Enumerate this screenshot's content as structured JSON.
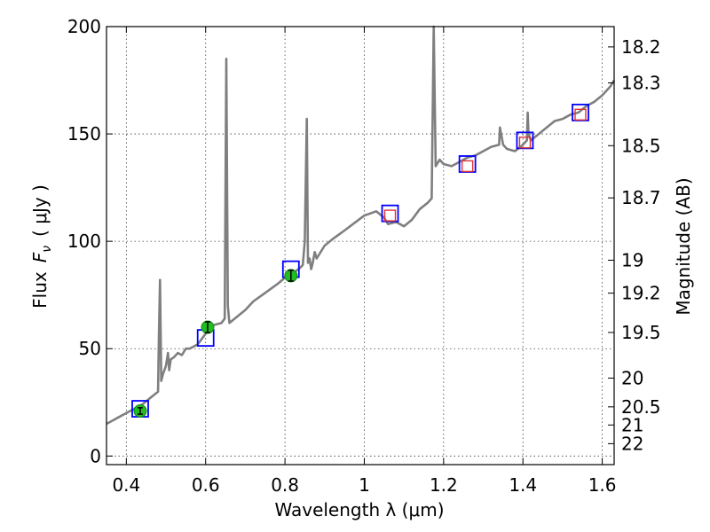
{
  "chart_data": {
    "type": "line",
    "title": "",
    "xlabel": "Wavelength  λ (μm)",
    "ylabel": "Flux  F_ν ( μJy )",
    "ylabel_parts": {
      "prefix": "Flux",
      "symbol": "F",
      "subscript": "ν",
      "unit": "( μJy )"
    },
    "y2label": "Magnitude (AB)",
    "xlim": [
      0.35,
      1.63
    ],
    "ylim": [
      -4,
      200
    ],
    "xticks": [
      0.4,
      0.6,
      0.8,
      1.0,
      1.2,
      1.4,
      1.6
    ],
    "xtick_labels": [
      "0.4",
      "0.6",
      "0.8",
      "1",
      "1.2",
      "1.4",
      "1.6"
    ],
    "yticks": [
      0,
      50,
      100,
      150,
      200
    ],
    "ytick_labels": [
      "0",
      "50",
      "100",
      "150",
      "200"
    ],
    "y2ticks": [
      18.2,
      18.3,
      18.5,
      18.7,
      19,
      19.2,
      19.5,
      20,
      20.5,
      21,
      22
    ],
    "y2tick_labels": [
      "18.2",
      "18.3",
      "18.5",
      "18.7",
      "19",
      "19.2",
      "19.5",
      "20",
      "20.5",
      "21",
      "22"
    ],
    "grid": true,
    "colors": {
      "spectrum": "#7f7f7f",
      "model_boxes": "#0000ff",
      "observed_points": "#22bb22",
      "nir_points": "#dd3333"
    },
    "series": [
      {
        "kind": "line",
        "x": [
          0.35,
          0.36,
          0.38,
          0.4,
          0.42,
          0.44,
          0.46,
          0.48,
          0.482,
          0.485,
          0.488,
          0.492,
          0.5,
          0.505,
          0.508,
          0.512,
          0.52,
          0.53,
          0.54,
          0.55,
          0.56,
          0.58,
          0.6,
          0.62,
          0.64,
          0.648,
          0.652,
          0.656,
          0.66,
          0.68,
          0.7,
          0.72,
          0.75,
          0.78,
          0.8,
          0.82,
          0.84,
          0.845,
          0.85,
          0.855,
          0.858,
          0.862,
          0.866,
          0.87,
          0.875,
          0.88,
          0.9,
          0.92,
          0.95,
          1.0,
          1.03,
          1.05,
          1.06,
          1.08,
          1.1,
          1.12,
          1.14,
          1.16,
          1.17,
          1.175,
          1.18,
          1.19,
          1.2,
          1.22,
          1.24,
          1.26,
          1.28,
          1.3,
          1.32,
          1.34,
          1.342,
          1.35,
          1.36,
          1.38,
          1.4,
          1.41,
          1.412,
          1.414,
          1.42,
          1.44,
          1.46,
          1.48,
          1.5,
          1.52,
          1.54,
          1.56,
          1.58,
          1.6,
          1.62,
          1.63
        ],
        "y": [
          15,
          16,
          18,
          20,
          22,
          24,
          27,
          30,
          55,
          82,
          35,
          38,
          42,
          48,
          40,
          45,
          46,
          48,
          47,
          50,
          50,
          52,
          57,
          61,
          62,
          64,
          185,
          70,
          62,
          65,
          68,
          72,
          76,
          80,
          83,
          85,
          88,
          89,
          100,
          157,
          90,
          92,
          87,
          90,
          95,
          92,
          98,
          101,
          105,
          112,
          114,
          111,
          108,
          109,
          107,
          110,
          115,
          118,
          120,
          200,
          135,
          138,
          136,
          135,
          137,
          139,
          140,
          142,
          144,
          145,
          153,
          145,
          143,
          142,
          145,
          147,
          160,
          150,
          147,
          150,
          153,
          156,
          157,
          159,
          160,
          163,
          165,
          168,
          172,
          175
        ]
      },
      {
        "kind": "box",
        "name": "",
        "x": [
          0.435,
          0.6,
          0.815,
          1.065,
          1.26,
          1.405,
          1.545
        ],
        "y": [
          22,
          55,
          87,
          113,
          136,
          147,
          160
        ]
      },
      {
        "kind": "point",
        "name": "",
        "x": [
          0.435,
          0.605,
          0.815
        ],
        "y": [
          21,
          60,
          84
        ],
        "yerr": [
          1.5,
          2.5,
          2.5
        ]
      },
      {
        "kind": "marker",
        "name": "",
        "x": [
          1.065,
          1.26,
          1.405,
          1.545
        ],
        "y": [
          112,
          135,
          146,
          159
        ]
      }
    ]
  }
}
